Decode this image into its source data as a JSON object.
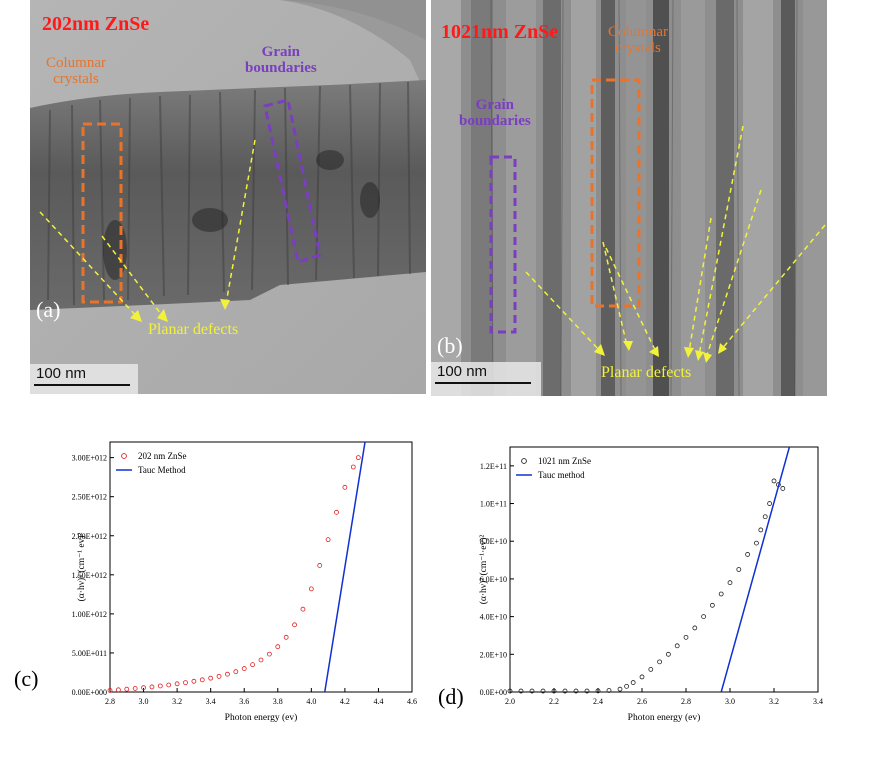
{
  "panel_a": {
    "title": "202nm ZnSe",
    "columnar_label_1": "Columnar",
    "columnar_label_2": "crystals",
    "grain_label_1": "Grain",
    "grain_label_2": "boundaries",
    "defects_label": "Planar defects",
    "letter": "(a)",
    "scale": "100 nm",
    "colors": {
      "columnar": "#e8742c",
      "grain": "#7a3ec0",
      "defects": "#f2f23a",
      "title": "#ff1a1a"
    }
  },
  "panel_b": {
    "title": "1021nm ZnSe",
    "columnar_label_1": "Columnar",
    "columnar_label_2": "crystals",
    "grain_label_1": "Grain",
    "grain_label_2": "boundaries",
    "defects_label": "Planar defects",
    "letter": "(b)",
    "scale": "100 nm"
  },
  "chart_data": [
    {
      "type": "scatter",
      "panel": "(c)",
      "xlabel": "Photon energy (ev)",
      "ylabel": "(α·hν)² (cm⁻¹ ev)²",
      "xlim": [
        2.8,
        4.6
      ],
      "ylim": [
        0,
        3200000000000.0
      ],
      "xticks": [
        2.8,
        3.0,
        3.2,
        3.4,
        3.6,
        3.8,
        4.0,
        4.2,
        4.4,
        4.6
      ],
      "xtick_labels": [
        "2.8",
        "3.0",
        "3.2",
        "3.4",
        "3.6",
        "3.8",
        "4.0",
        "4.2",
        "4.4",
        "4.6"
      ],
      "yticks": [
        0,
        500000000000.0,
        1000000000000.0,
        1500000000000.0,
        2000000000000.0,
        2500000000000.0,
        3000000000000.0
      ],
      "ytick_labels": [
        "0.00E+000",
        "5.00E+011",
        "1.00E+012",
        "1.50E+012",
        "2.00E+012",
        "2.50E+012",
        "3.00E+012"
      ],
      "legend": [
        "202 nm ZnSe",
        "Tauc Method"
      ],
      "legend_position": "top-left",
      "series": [
        {
          "name": "202 nm ZnSe",
          "style": "open-circle",
          "color": "#e02020",
          "x": [
            2.8,
            2.85,
            2.9,
            2.95,
            3.0,
            3.05,
            3.1,
            3.15,
            3.2,
            3.25,
            3.3,
            3.35,
            3.4,
            3.45,
            3.5,
            3.55,
            3.6,
            3.65,
            3.7,
            3.75,
            3.8,
            3.85,
            3.9,
            3.95,
            4.0,
            4.05,
            4.1,
            4.15,
            4.2,
            4.25,
            4.28
          ],
          "y": [
            20000000000.0,
            28000000000.0,
            36000000000.0,
            45000000000.0,
            55000000000.0,
            65000000000.0,
            77000000000.0,
            90000000000.0,
            105000000000.0,
            120000000000.0,
            137000000000.0,
            156000000000.0,
            177000000000.0,
            200000000000.0,
            228000000000.0,
            260000000000.0,
            300000000000.0,
            350000000000.0,
            410000000000.0,
            485000000000.0,
            580000000000.0,
            700000000000.0,
            860000000000.0,
            1060000000000.0,
            1320000000000.0,
            1620000000000.0,
            1950000000000.0,
            2300000000000.0,
            2620000000000.0,
            2880000000000.0,
            3000000000000.0
          ]
        },
        {
          "name": "Tauc Method",
          "style": "line",
          "color": "#1030d0",
          "x": [
            4.08,
            4.32
          ],
          "y": [
            0,
            3200000000000.0
          ]
        }
      ]
    },
    {
      "type": "scatter",
      "panel": "(d)",
      "xlabel": "Photon energy (ev)",
      "ylabel": "(α·hν)² (cm⁻¹·ev)²",
      "xlim": [
        2.0,
        3.4
      ],
      "ylim": [
        0,
        130000000000.0
      ],
      "xticks": [
        2.0,
        2.2,
        2.4,
        2.6,
        2.8,
        3.0,
        3.2,
        3.4
      ],
      "xtick_labels": [
        "2.0",
        "2.2",
        "2.4",
        "2.6",
        "2.8",
        "3.0",
        "3.2",
        "3.4"
      ],
      "yticks": [
        0,
        20000000000.0,
        40000000000.0,
        60000000000.0,
        80000000000.0,
        100000000000.0,
        120000000000.0
      ],
      "ytick_labels": [
        "0.0E+00",
        "2.0E+10",
        "4.0E+10",
        "6.0E+10",
        "8.0E+10",
        "1.0E+11",
        "1.2E+11"
      ],
      "legend": [
        "1021 nm ZnSe",
        "Tauc method"
      ],
      "legend_position": "top-left",
      "series": [
        {
          "name": "1021 nm ZnSe",
          "style": "open-circle",
          "color": "#222222",
          "x": [
            2.0,
            2.05,
            2.1,
            2.15,
            2.2,
            2.25,
            2.3,
            2.35,
            2.4,
            2.45,
            2.5,
            2.53,
            2.56,
            2.6,
            2.64,
            2.68,
            2.72,
            2.76,
            2.8,
            2.84,
            2.88,
            2.92,
            2.96,
            3.0,
            3.04,
            3.08,
            3.12,
            3.14,
            3.16,
            3.18,
            3.2,
            3.22,
            3.24
          ],
          "y": [
            500000000.0,
            500000000.0,
            500000000.0,
            500000000.0,
            500000000.0,
            500000000.0,
            500000000.0,
            500000000.0,
            600000000.0,
            800000000.0,
            1500000000.0,
            3000000000.0,
            5000000000.0,
            8000000000.0,
            12000000000.0,
            16000000000.0,
            20000000000.0,
            24500000000.0,
            29000000000.0,
            34000000000.0,
            40000000000.0,
            46000000000.0,
            52000000000.0,
            58000000000.0,
            65000000000.0,
            73000000000.0,
            79000000000.0,
            86000000000.0,
            93000000000.0,
            100000000000.0,
            112000000000.0,
            110000000000.0,
            108000000000.0
          ]
        },
        {
          "name": "Tauc method",
          "style": "line",
          "color": "#1030d0",
          "x": [
            2.96,
            3.27
          ],
          "y": [
            0,
            130000000000.0
          ]
        }
      ]
    }
  ],
  "captions": {
    "c": "(c)",
    "d": "(d)"
  }
}
